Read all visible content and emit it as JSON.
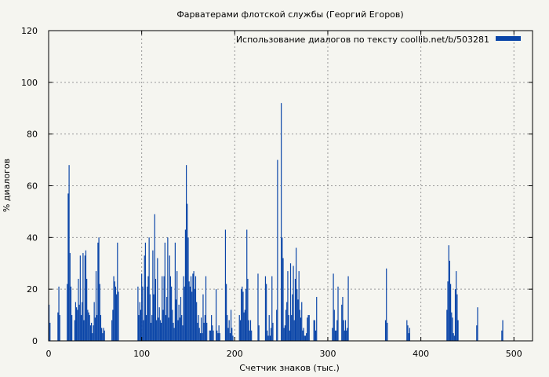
{
  "chart_data": {
    "type": "bar",
    "title": "Фарватерами флотской службы (Георгий Егоров)",
    "xlabel": "Счетчик знаков (тыс.)",
    "ylabel": "% диалогов",
    "xlim": [
      0,
      520
    ],
    "ylim": [
      0,
      120
    ],
    "x_ticks": [
      0,
      100,
      200,
      300,
      400,
      500
    ],
    "y_ticks": [
      0,
      20,
      40,
      60,
      80,
      100,
      120
    ],
    "grid": true,
    "legend_position": "top-right",
    "series": [
      {
        "name": "Использование диалогов по тексту  coollib.net/b/503281",
        "color": "#0a45a8",
        "x": [
          0.5,
          1.5,
          10,
          11,
          12,
          20,
          21,
          22,
          23,
          24,
          25,
          28,
          29,
          30,
          31,
          32,
          33,
          34,
          35,
          36,
          37,
          38,
          39,
          40,
          41,
          42,
          43,
          44,
          45,
          46,
          47,
          48,
          49,
          50,
          51,
          52,
          53,
          54,
          55,
          56,
          57,
          58,
          59,
          60,
          68,
          69,
          70,
          71,
          72,
          73,
          74,
          75,
          96,
          97,
          98,
          99,
          100,
          101,
          102,
          103,
          104,
          105,
          106,
          107,
          108,
          109,
          110,
          111,
          112,
          113,
          114,
          115,
          116,
          117,
          118,
          119,
          120,
          121,
          122,
          123,
          124,
          125,
          126,
          127,
          128,
          129,
          130,
          131,
          132,
          133,
          134,
          135,
          136,
          137,
          138,
          139,
          140,
          141,
          142,
          143,
          144,
          145,
          146,
          147,
          148,
          149,
          150,
          151,
          152,
          153,
          154,
          155,
          156,
          157,
          158,
          159,
          160,
          161,
          162,
          163,
          164,
          165,
          166,
          167,
          168,
          169,
          170,
          173,
          174,
          175,
          176,
          177,
          180,
          181,
          182,
          183,
          184,
          190,
          191,
          192,
          193,
          194,
          195,
          196,
          197,
          198,
          205,
          206,
          207,
          208,
          209,
          210,
          211,
          212,
          213,
          214,
          215,
          216,
          217,
          218,
          225,
          226,
          233,
          234,
          235,
          236,
          237,
          238,
          239,
          240,
          241,
          245,
          246,
          250,
          251,
          252,
          253,
          254,
          255,
          256,
          257,
          258,
          259,
          260,
          261,
          262,
          263,
          264,
          265,
          266,
          267,
          268,
          269,
          270,
          271,
          272,
          273,
          274,
          275,
          276,
          277,
          278,
          279,
          280,
          285,
          286,
          287,
          288,
          305,
          306,
          307,
          308,
          309,
          310,
          311,
          315,
          316,
          317,
          318,
          319,
          320,
          321,
          322,
          362,
          363,
          364,
          385,
          386,
          387,
          388,
          428,
          429,
          430,
          431,
          432,
          433,
          434,
          435,
          436,
          437,
          438,
          439,
          440,
          460,
          461,
          487,
          488
        ],
        "values": [
          14,
          7,
          11,
          21,
          10,
          22,
          57,
          68,
          34,
          21,
          10,
          8,
          15,
          13,
          12,
          24,
          14,
          33,
          10,
          15,
          34,
          8,
          33,
          35,
          24,
          12,
          11,
          10,
          6,
          7,
          3,
          6,
          15,
          9,
          27,
          10,
          38,
          40,
          22,
          10,
          5,
          3,
          5,
          4,
          8,
          12,
          25,
          23,
          21,
          18,
          38,
          19,
          21,
          10,
          15,
          12,
          26,
          21,
          8,
          33,
          38,
          10,
          21,
          25,
          40,
          18,
          7,
          10,
          35,
          18,
          49,
          24,
          8,
          32,
          9,
          13,
          8,
          7,
          25,
          12,
          25,
          38,
          10,
          17,
          40,
          9,
          33,
          25,
          21,
          12,
          7,
          5,
          38,
          16,
          27,
          8,
          14,
          9,
          17,
          10,
          6,
          25,
          21,
          43,
          68,
          53,
          40,
          23,
          21,
          25,
          19,
          26,
          27,
          20,
          25,
          15,
          7,
          10,
          5,
          3,
          9,
          3,
          18,
          7,
          10,
          25,
          7,
          4,
          4,
          10,
          6,
          4,
          20,
          4,
          3,
          6,
          3,
          43,
          22,
          10,
          5,
          8,
          3,
          12,
          5,
          2,
          10,
          8,
          20,
          21,
          19,
          11,
          12,
          20,
          43,
          24,
          8,
          4,
          8,
          4,
          26,
          6,
          25,
          22,
          4,
          2,
          10,
          2,
          5,
          25,
          7,
          12,
          70,
          92,
          40,
          32,
          5,
          6,
          12,
          15,
          27,
          10,
          4,
          30,
          10,
          18,
          29,
          8,
          24,
          36,
          20,
          16,
          27,
          12,
          9,
          15,
          4,
          5,
          2,
          2,
          3,
          9,
          10,
          10,
          8,
          8,
          4,
          17,
          5,
          26,
          12,
          4,
          4,
          8,
          21,
          14,
          17,
          8,
          4,
          8,
          4,
          5,
          25,
          8,
          28,
          7,
          8,
          6,
          3,
          5,
          12,
          23,
          37,
          31,
          22,
          11,
          9,
          3,
          2,
          20,
          27,
          18,
          8,
          6,
          13,
          4,
          8
        ],
        "bar_width": 1
      }
    ]
  }
}
